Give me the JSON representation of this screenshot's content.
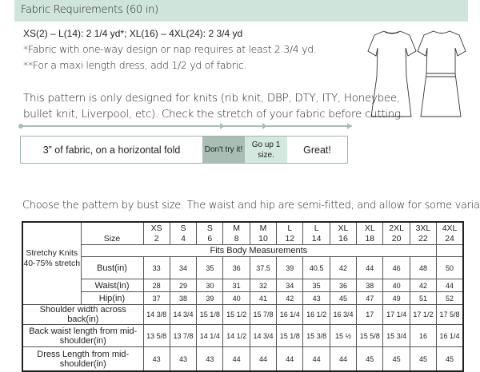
{
  "header": {
    "title": "Fabric Requirements (60 in)"
  },
  "fabric": {
    "line1": "XS(2) – L(14): 2 1/4 yd*; XL(16) – 4XL(24): 2 3/4 yd",
    "line2": "*Fabric with one-way design or nap requires at least 2 3/4 yd.",
    "line3": "**For a maxi length dress, add 1/2 yd of fabric."
  },
  "knits": {
    "line1": "This pattern is only designed for knits (rib knit, DBP, DTY, ITY, Honeybee,",
    "line2": "bullet knit, Liverpool, etc). Check the stretch of your fabric before cutting."
  },
  "stretch_guide": {
    "label": "3” of fabric, on a horizontal fold",
    "dont": "Don't try it!",
    "up": "Go up 1 size.",
    "great": "Great!",
    "colors": {
      "dont": "#a9bdb5",
      "up": "#d4e8df",
      "header": "#cfe5dc"
    }
  },
  "choose": "Choose the pattern by bust size. The waist and hip are semi-fitted, and allow for some variation.",
  "table": {
    "group_label": "Stretchy Knits 40-75% stretch",
    "size_label": "Size",
    "fits_label": "Fits Body Measurements",
    "sizes": [
      [
        "XS",
        "2"
      ],
      [
        "S",
        "4"
      ],
      [
        "S",
        "6"
      ],
      [
        "M",
        "8"
      ],
      [
        "M",
        "10"
      ],
      [
        "L",
        "12"
      ],
      [
        "L",
        "14"
      ],
      [
        "XL",
        "16"
      ],
      [
        "XL",
        "18"
      ],
      [
        "2XL",
        "20"
      ],
      [
        "3XL",
        "22"
      ],
      [
        "4XL",
        "24"
      ]
    ],
    "rows": [
      {
        "label": "Bust(in)",
        "values": [
          "33",
          "34",
          "35",
          "36",
          "37.5",
          "39",
          "40.5",
          "42",
          "44",
          "46",
          "48",
          "50"
        ]
      },
      {
        "label": "Waist(in)",
        "values": [
          "28",
          "29",
          "30",
          "31",
          "32",
          "34",
          "35",
          "36",
          "38",
          "40",
          "42",
          "44"
        ]
      },
      {
        "label": "Hip(in)",
        "values": [
          "37",
          "38",
          "39",
          "40",
          "41",
          "42",
          "43",
          "45",
          "47",
          "49",
          "51",
          "52"
        ]
      },
      {
        "label": "Shoulder width across back(in)",
        "values": [
          "14 3/8",
          "14 3/4",
          "15 1/8",
          "15 1/2",
          "15 7/8",
          "16 1/4",
          "16 1/2",
          "16 3/4",
          "17",
          "17 1/4",
          "17 1/2",
          "17 5/8"
        ]
      },
      {
        "label": "Back waist length from mid-shoulder(in)",
        "values": [
          "13 5/8",
          "13 7/8",
          "14 1/4",
          "14 1/2",
          "14 3/4",
          "15 1/8",
          "15 3/8",
          "15 ½",
          "15 5/8",
          "15 3/4",
          "16",
          "16 1/4"
        ]
      },
      {
        "label": "Dress Length from mid-shoulder(in)",
        "values": [
          "43",
          "43",
          "43",
          "44",
          "44",
          "44",
          "44",
          "44",
          "45",
          "45",
          "45",
          "45"
        ]
      }
    ]
  }
}
